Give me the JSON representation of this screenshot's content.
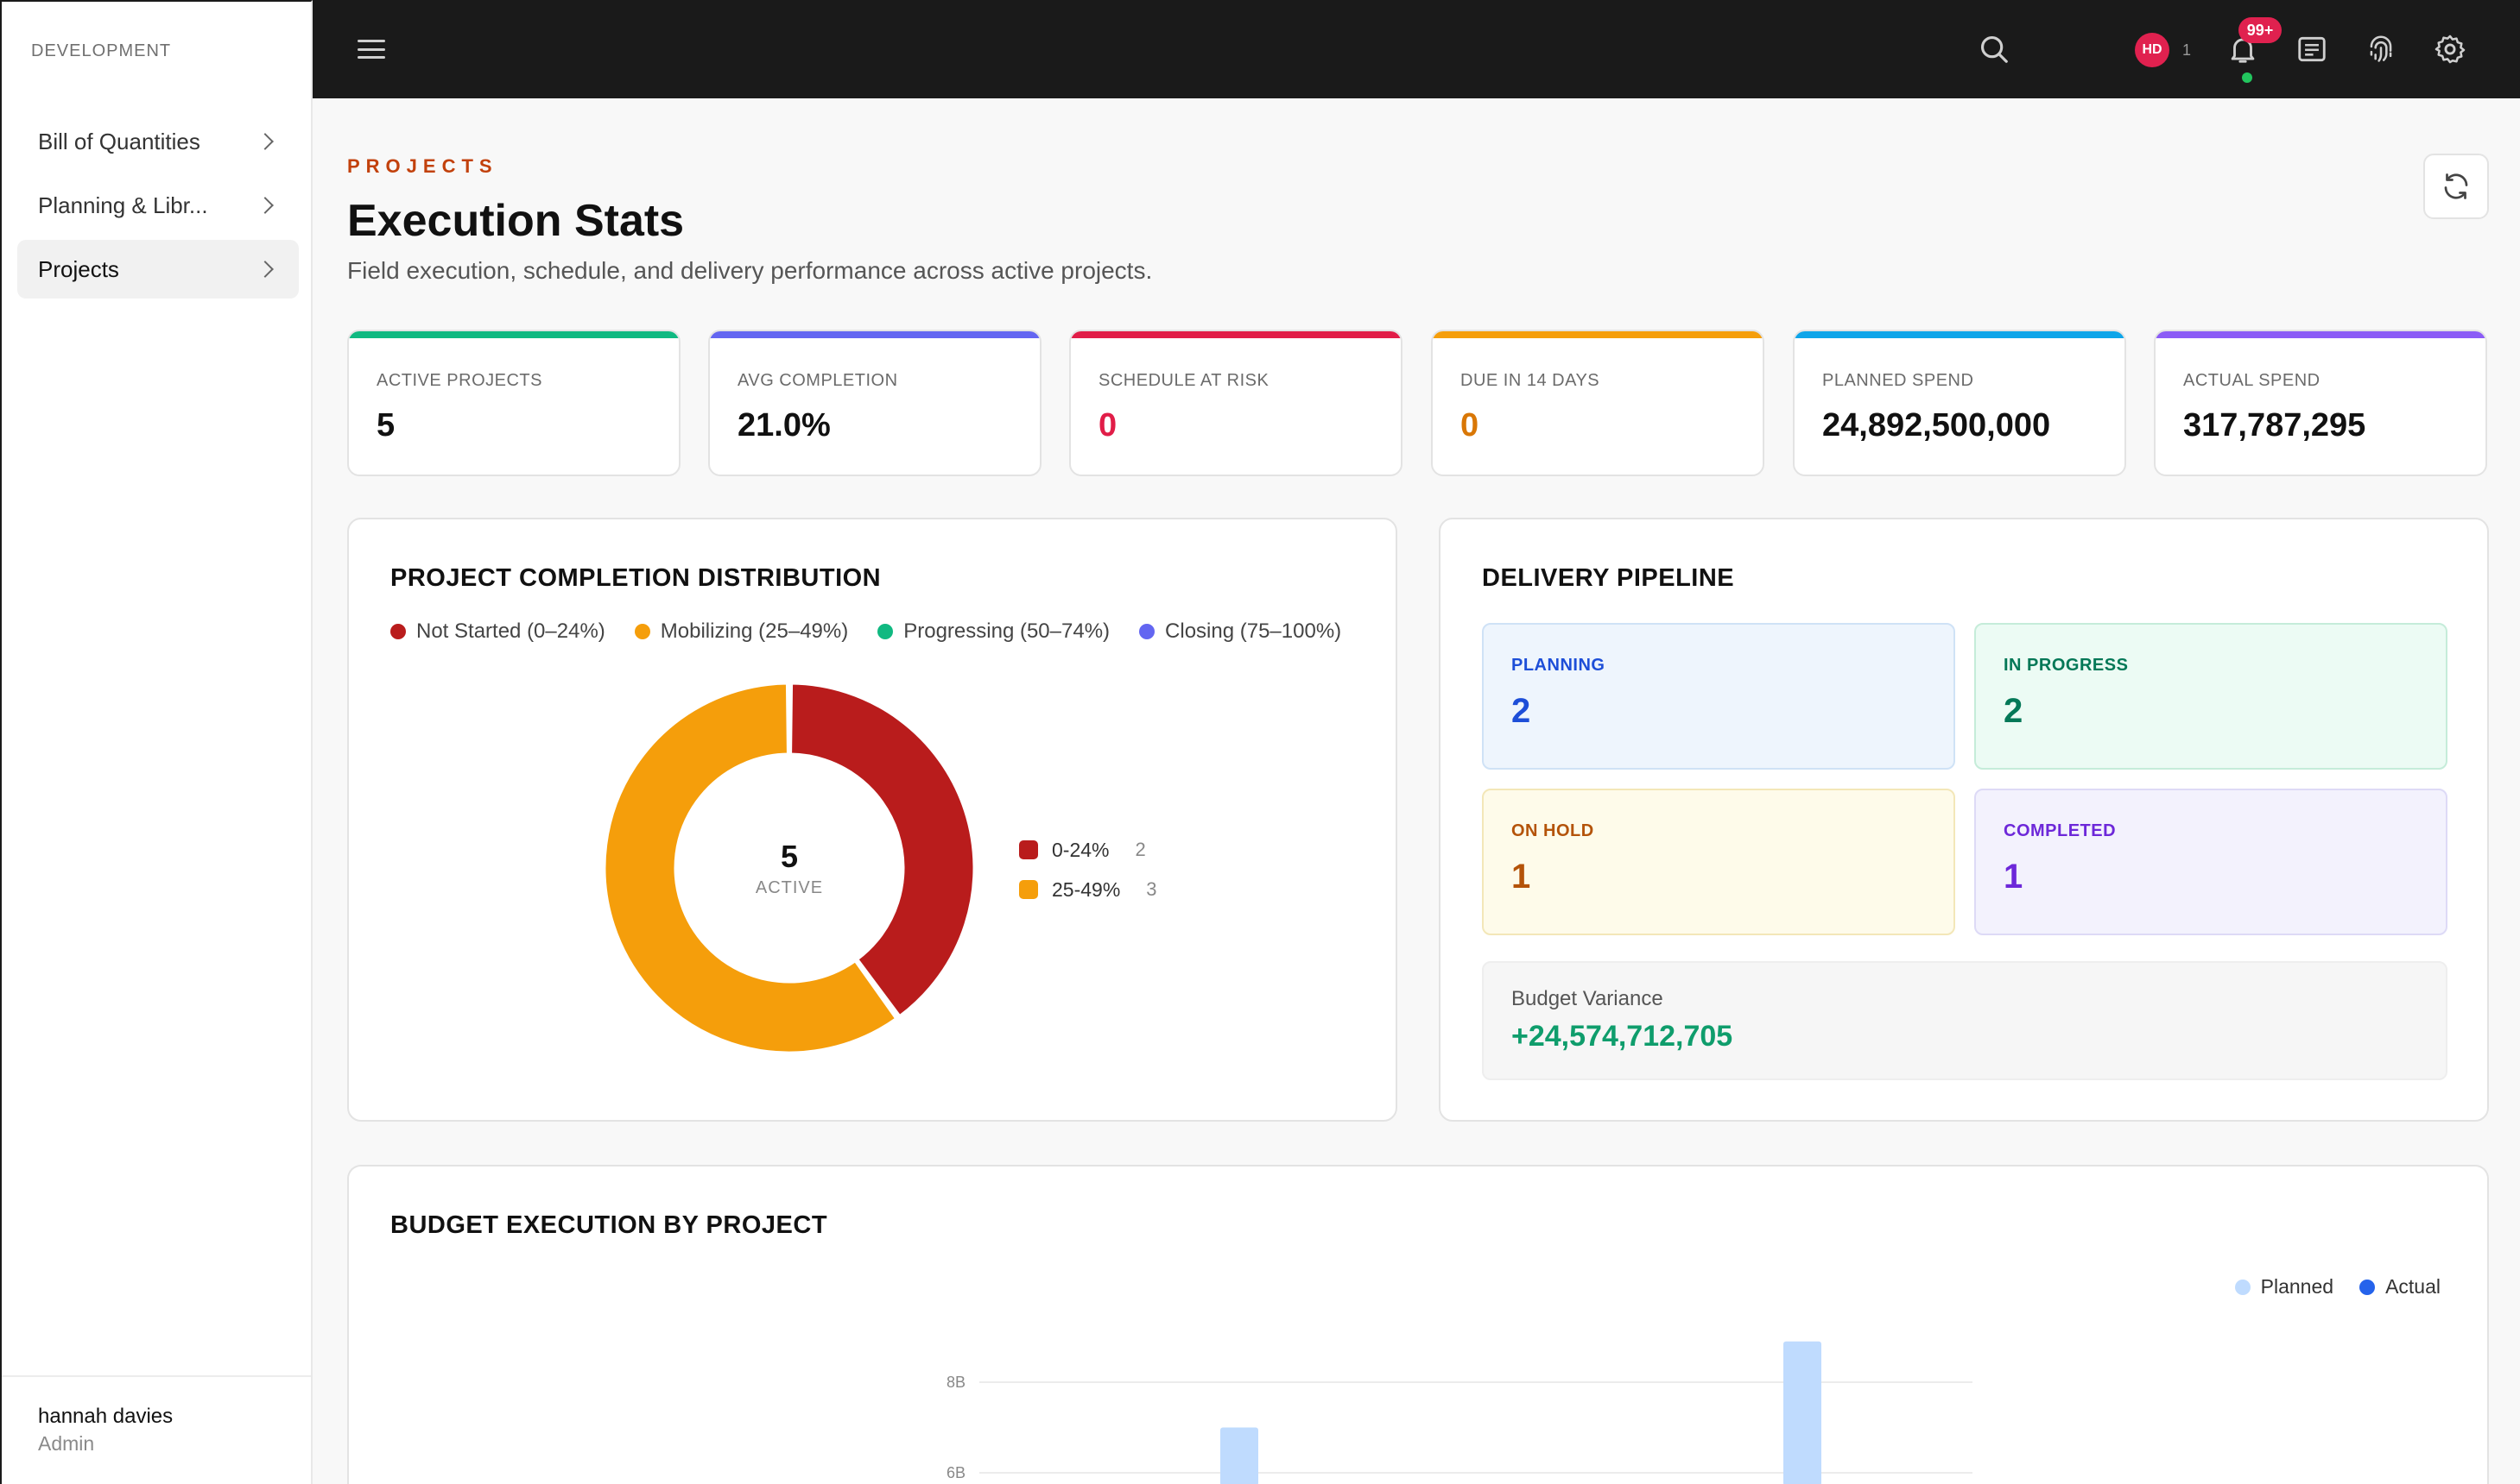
{
  "sidebar": {
    "section_title": "DEVELOPMENT",
    "items": [
      {
        "label": "Bill of Quantities",
        "active": false
      },
      {
        "label": "Planning & Libr...",
        "active": false
      },
      {
        "label": "Projects",
        "active": true
      }
    ],
    "user": {
      "name": "hannah davies",
      "role": "Admin"
    }
  },
  "topbar": {
    "menu_icon": "hamburger-icon",
    "avatar_initials": "HD",
    "avatar_count": "1",
    "notification_badge": "99+",
    "icons": [
      "search-icon",
      "bell-icon",
      "news-icon",
      "fingerprint-icon",
      "gear-icon"
    ]
  },
  "header": {
    "eyebrow": "PROJECTS",
    "title": "Execution Stats",
    "subtitle": "Field execution, schedule, and delivery performance across active projects.",
    "refresh_icon": "refresh-icon"
  },
  "kpis": [
    {
      "label": "ACTIVE PROJECTS",
      "value": "5",
      "accent": "#10b981",
      "value_color": "#111111"
    },
    {
      "label": "AVG COMPLETION",
      "value": "21.0%",
      "accent": "#6366f1",
      "value_color": "#111111"
    },
    {
      "label": "SCHEDULE AT RISK",
      "value": "0",
      "accent": "#e11d48",
      "value_color": "#e11d48"
    },
    {
      "label": "DUE IN 14 DAYS",
      "value": "0",
      "accent": "#f59e0b",
      "value_color": "#d97706"
    },
    {
      "label": "PLANNED SPEND",
      "value": "24,892,500,000",
      "accent": "#0ea5e9",
      "value_color": "#111111"
    },
    {
      "label": "ACTUAL SPEND",
      "value": "317,787,295",
      "accent": "#8b5cf6",
      "value_color": "#111111"
    }
  ],
  "completion": {
    "title": "PROJECT COMPLETION DISTRIBUTION",
    "legend": [
      {
        "label": "Not Started (0–24%)",
        "color": "#b91c1c"
      },
      {
        "label": "Mobilizing (25–49%)",
        "color": "#f59e0b"
      },
      {
        "label": "Progressing (50–74%)",
        "color": "#10b981"
      },
      {
        "label": "Closing (75–100%)",
        "color": "#6366f1"
      }
    ],
    "center_value": "5",
    "center_label": "ACTIVE",
    "side_legend": [
      {
        "label": "0-24%",
        "count": "2",
        "color": "#b91c1c"
      },
      {
        "label": "25-49%",
        "count": "3",
        "color": "#f59e0b"
      }
    ]
  },
  "pipeline": {
    "title": "DELIVERY PIPELINE",
    "cards": [
      {
        "label": "PLANNING",
        "value": "2",
        "bg": "#eef5fd",
        "border": "#cfe2f6",
        "color": "#1d4ed8"
      },
      {
        "label": "IN PROGRESS",
        "value": "2",
        "bg": "#ecfbf4",
        "border": "#c5ecd9",
        "color": "#047857"
      },
      {
        "label": "ON HOLD",
        "value": "1",
        "bg": "#fefbea",
        "border": "#f3e7b8",
        "color": "#b45309"
      },
      {
        "label": "COMPLETED",
        "value": "1",
        "bg": "#f3f2fd",
        "border": "#dddaf6",
        "color": "#6d28d9"
      }
    ],
    "variance_label": "Budget Variance",
    "variance_value": "+24,574,712,705"
  },
  "budget": {
    "title": "BUDGET EXECUTION BY PROJECT",
    "legend": [
      {
        "label": "Planned",
        "color": "#bfdbfe"
      },
      {
        "label": "Actual",
        "color": "#2563eb"
      }
    ]
  },
  "chart_data": [
    {
      "type": "pie",
      "title": "PROJECT COMPLETION DISTRIBUTION",
      "categories": [
        "0-24%",
        "25-49%"
      ],
      "values": [
        2,
        3
      ],
      "colors": [
        "#b91c1c",
        "#f59e0b"
      ],
      "donut": true
    },
    {
      "type": "bar",
      "title": "BUDGET EXECUTION BY PROJECT",
      "y_tick_labels": [
        "6B",
        "8B"
      ],
      "y_ticks": [
        6000000000,
        8000000000
      ],
      "series": [
        {
          "name": "Planned",
          "color": "#bfdbfe",
          "values": [
            7000000000,
            8900000000
          ]
        }
      ],
      "legend": "top-right",
      "grid": true
    }
  ]
}
